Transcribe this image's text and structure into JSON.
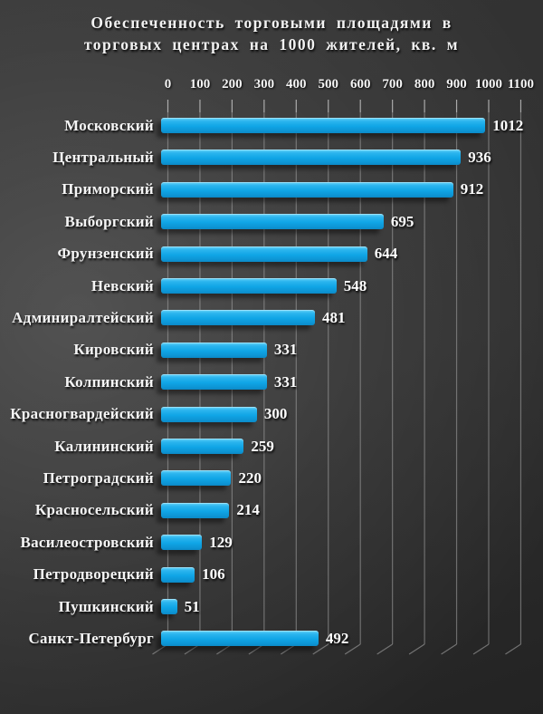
{
  "title": {
    "line1": "Обеспеченность торговыми площадями в",
    "line2": "торговых центрах на 1000 жителей, кв. м"
  },
  "chart_data": {
    "type": "bar",
    "orientation": "horizontal",
    "title": "Обеспеченность торговыми площадями в торговых центрах на 1000 жителей, кв. м",
    "categories": [
      "Московский",
      "Центральный",
      "Приморский",
      "Выборгский",
      "Фрунзенский",
      "Невский",
      "Админиралтейский",
      "Кировский",
      "Колпинский",
      "Красногвардейский",
      "Калининский",
      "Петроградский",
      "Красносельский",
      "Василеостровский",
      "Петродворецкий",
      "Пушкинский",
      "Санкт-Петербург"
    ],
    "values": [
      1012,
      936,
      912,
      695,
      644,
      548,
      481,
      331,
      331,
      300,
      259,
      220,
      214,
      129,
      106,
      51,
      492
    ],
    "x_ticks": [
      0,
      100,
      200,
      300,
      400,
      500,
      600,
      700,
      800,
      900,
      1000,
      1100
    ],
    "xlim": [
      0,
      1100
    ],
    "grid": true,
    "data_labels": true,
    "legend": "none",
    "colors": {
      "bar": "#10a5e6",
      "bar_highlight": "#6ad4f8",
      "background": "#303030",
      "text": "#f5f5f5",
      "gridline": "#9a9a9a"
    }
  }
}
